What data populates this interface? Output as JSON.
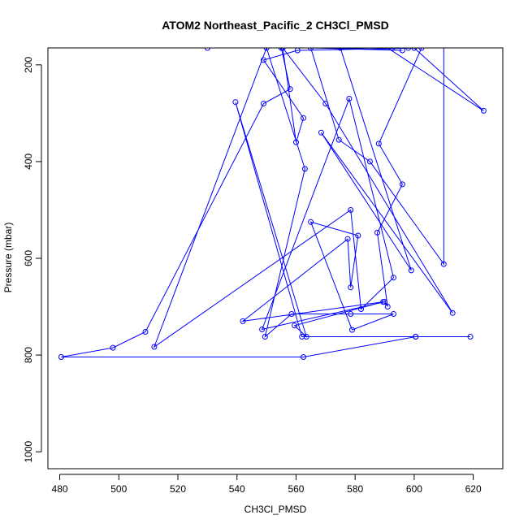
{
  "chart_data": {
    "type": "line",
    "title": "ATOM2 Northeast_Pacific_2 CH3Cl_PMSD",
    "xlabel": "CH3Cl_PMSD",
    "ylabel": "Pressure (mbar)",
    "xlim": [
      476,
      630
    ],
    "ylim": [
      1035,
      165
    ],
    "y_reversed": true,
    "x_ticks": [
      480,
      500,
      520,
      540,
      560,
      580,
      600,
      620
    ],
    "y_ticks": [
      200,
      400,
      600,
      800,
      1000
    ],
    "grid": false,
    "legend": "none",
    "colors": {
      "series": "#0000ff"
    },
    "series": [
      {
        "x": [
          555.0,
          558.0,
          549.0,
          509.0,
          498.0,
          480.5,
          562.5,
          600.5,
          619.0,
          600.5,
          562.0,
          539.5,
          563.5,
          559.5,
          589.5,
          542.0,
          577.5,
          578.5,
          581.0,
          565.0,
          579.0,
          593.0,
          578.5,
          558.5,
          549.5,
          563.0,
          550.0,
          512.0,
          578.5,
          582.0,
          593.0,
          578.0,
          548.5,
          590.0,
          591.0,
          587.5,
          596.0,
          588.0,
          602.5,
          560.5,
          549.0,
          562.5,
          560.0,
          555.5,
          570.0,
          613.0,
          568.5,
          599.0,
          575.0,
          596.0,
          565.0,
          574.5,
          585.0,
          610.0,
          610.0,
          560.5,
          569.0,
          581.0,
          623.5,
          600.0,
          530.0,
          592.5,
          598.0
        ],
        "y": [
          165,
          250,
          280,
          752,
          785,
          804,
          804,
          762,
          762,
          762,
          762,
          277,
          762,
          739,
          690,
          730,
          560,
          660,
          553,
          525,
          748,
          715,
          715,
          715,
          762,
          415,
          165,
          783,
          500,
          705,
          640,
          270,
          747,
          690,
          700,
          547,
          447,
          363,
          165,
          170,
          190,
          310,
          360,
          165,
          280,
          713,
          340,
          625,
          165,
          170,
          165,
          355,
          400,
          612,
          100,
          110,
          120,
          125,
          295,
          165,
          165,
          165,
          165
        ]
      }
    ]
  }
}
